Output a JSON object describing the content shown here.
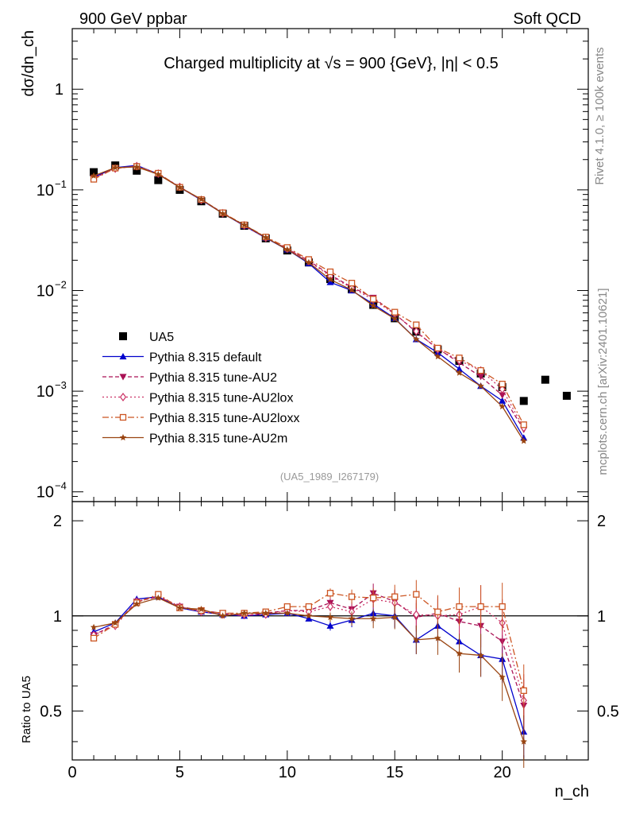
{
  "header": {
    "left": "900 GeV ppbar",
    "right": "Soft QCD"
  },
  "side_labels": {
    "rivet": "Rivet 4.1.0, ≥ 100k events",
    "mcplots": "mcplots.cern.ch [arXiv:2401.10621]"
  },
  "chart_data": {
    "type": "line",
    "title": "Charged multiplicity at √s = 900 {GeV}, |η| < 0.5",
    "reference": "(UA5_1989_I267179)",
    "xlabel": "n_ch",
    "ylabel": "dσ/dn_ch",
    "ratio_ylabel": "Ratio to UA5",
    "xlim": [
      0,
      24
    ],
    "ylim": [
      8e-05,
      4
    ],
    "ratio_ylim": [
      0.35,
      2.3
    ],
    "x_ticks": [
      0,
      5,
      10,
      15,
      20
    ],
    "ratio_ticks": [
      0.5,
      1,
      2
    ],
    "legend_position": "lower-left",
    "data": {
      "name": "UA5",
      "x": [
        1,
        2,
        3,
        4,
        5,
        6,
        7,
        8,
        9,
        10,
        11,
        12,
        13,
        14,
        15,
        16,
        17,
        18,
        19,
        20,
        21,
        22,
        23
      ],
      "values": [
        0.15,
        0.175,
        0.155,
        0.125,
        0.1,
        0.077,
        0.058,
        0.044,
        0.033,
        0.025,
        0.019,
        0.013,
        0.0103,
        0.0072,
        0.0053,
        0.0039,
        0.0026,
        0.002,
        0.0015,
        0.0011,
        0.0008,
        0.0013,
        0.0009
      ]
    },
    "series": [
      {
        "name": "Pythia 8.315 default",
        "color": "#0000cc",
        "marker": "triangle-up",
        "dash": "none",
        "x": [
          1,
          2,
          3,
          4,
          5,
          6,
          7,
          8,
          9,
          10,
          11,
          12,
          13,
          14,
          15,
          16,
          17,
          18,
          19,
          20,
          21
        ],
        "ratio": [
          0.89,
          0.95,
          1.13,
          1.15,
          1.06,
          1.03,
          1.01,
          1.0,
          1.01,
          1.02,
          0.98,
          0.93,
          0.97,
          1.02,
          1.0,
          0.84,
          0.93,
          0.83,
          0.75,
          0.73,
          0.43
        ]
      },
      {
        "name": "Pythia 8.315 tune-AU2",
        "color": "#aa1155",
        "marker": "triangle-down",
        "dash": "5,3",
        "x": [
          1,
          2,
          3,
          4,
          5,
          6,
          7,
          8,
          9,
          10,
          11,
          12,
          13,
          14,
          15,
          16,
          17,
          18,
          19,
          20,
          21
        ],
        "ratio": [
          0.87,
          0.94,
          1.11,
          1.15,
          1.07,
          1.04,
          1.02,
          1.0,
          1.02,
          1.04,
          1.04,
          1.1,
          1.05,
          1.18,
          1.11,
          0.99,
          1.02,
          0.96,
          0.93,
          0.83,
          0.52
        ]
      },
      {
        "name": "Pythia 8.315 tune-AU2lox",
        "color": "#cc3366",
        "marker": "diamond",
        "dash": "2,3",
        "x": [
          1,
          2,
          3,
          4,
          5,
          6,
          7,
          8,
          9,
          10,
          11,
          12,
          13,
          14,
          15,
          16,
          17,
          18,
          19,
          20,
          21
        ],
        "ratio": [
          0.87,
          0.93,
          1.11,
          1.16,
          1.07,
          1.03,
          1.01,
          1.01,
          1.01,
          1.04,
          1.03,
          1.07,
          1.03,
          1.13,
          1.1,
          1.01,
          1.0,
          1.01,
          1.07,
          0.95,
          0.54
        ]
      },
      {
        "name": "Pythia 8.315 tune-AU2loxx",
        "color": "#cc5522",
        "marker": "square-open",
        "dash": "8,3,2,3",
        "x": [
          1,
          2,
          3,
          4,
          5,
          6,
          7,
          8,
          9,
          10,
          11,
          12,
          13,
          14,
          15,
          16,
          17,
          18,
          19,
          20,
          21
        ],
        "ratio": [
          0.85,
          0.94,
          1.1,
          1.17,
          1.06,
          1.04,
          1.02,
          1.02,
          1.03,
          1.07,
          1.07,
          1.18,
          1.15,
          1.14,
          1.15,
          1.17,
          1.03,
          1.07,
          1.07,
          1.07,
          0.58
        ]
      },
      {
        "name": "Pythia 8.315 tune-AU2m",
        "color": "#994411",
        "marker": "star",
        "dash": "none",
        "x": [
          1,
          2,
          3,
          4,
          5,
          6,
          7,
          8,
          9,
          10,
          11,
          12,
          13,
          14,
          15,
          16,
          17,
          18,
          19,
          20,
          21
        ],
        "ratio": [
          0.92,
          0.95,
          1.09,
          1.14,
          1.06,
          1.05,
          1.0,
          1.02,
          1.02,
          1.02,
          1.0,
          0.99,
          0.98,
          0.98,
          0.99,
          0.84,
          0.85,
          0.76,
          0.75,
          0.64,
          0.4
        ]
      }
    ]
  }
}
